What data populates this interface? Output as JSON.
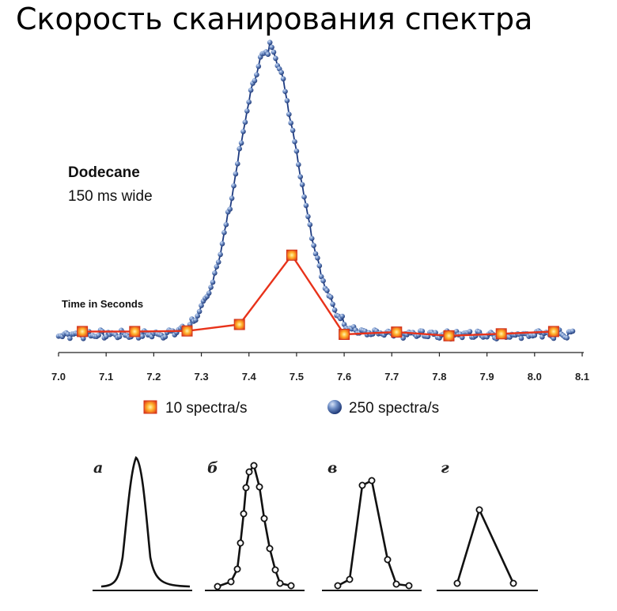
{
  "slide": {
    "title": "Скорость сканирования спектра"
  },
  "chart_data": {
    "type": "line",
    "title": "Dodecane",
    "subtitle": "150 ms wide",
    "xlabel": "Time in Seconds",
    "ylabel": "",
    "xlim": [
      7.0,
      8.1
    ],
    "x_ticks": [
      "7.0",
      "7.1",
      "7.2",
      "7.3",
      "7.4",
      "7.5",
      "7.6",
      "7.7",
      "7.8",
      "7.9",
      "8.0",
      "8.1"
    ],
    "legend_position": "bottom",
    "peak": {
      "center": 7.44,
      "width_s": 0.15,
      "height_250": 100,
      "height_10": 28
    },
    "series": [
      {
        "name": "10 spectra/s",
        "color": "#e8321a",
        "marker": "square",
        "x": [
          7.05,
          7.16,
          7.27,
          7.38,
          7.49,
          7.6,
          7.71,
          7.82,
          7.93,
          8.04
        ],
        "y": [
          1.0,
          1.0,
          1.2,
          3.5,
          28.0,
          0.0,
          0.8,
          -0.5,
          0.2,
          1.0
        ]
      },
      {
        "name": "250 spectra/s",
        "color": "#2f4d8f",
        "marker": "sphere",
        "x_start": 7.0,
        "x_end": 8.08,
        "interval_s": 0.004,
        "baseline_noise": 1.2,
        "tail_decay_s": 0.025,
        "tail_amplitude": 3
      }
    ]
  },
  "sketch": {
    "panels": [
      {
        "label": "а",
        "type": "continuous"
      },
      {
        "label": "б",
        "type": "dense-points",
        "points": 13
      },
      {
        "label": "в",
        "type": "medium-points",
        "points": 6
      },
      {
        "label": "г",
        "type": "sparse-points",
        "points": 3
      }
    ]
  }
}
